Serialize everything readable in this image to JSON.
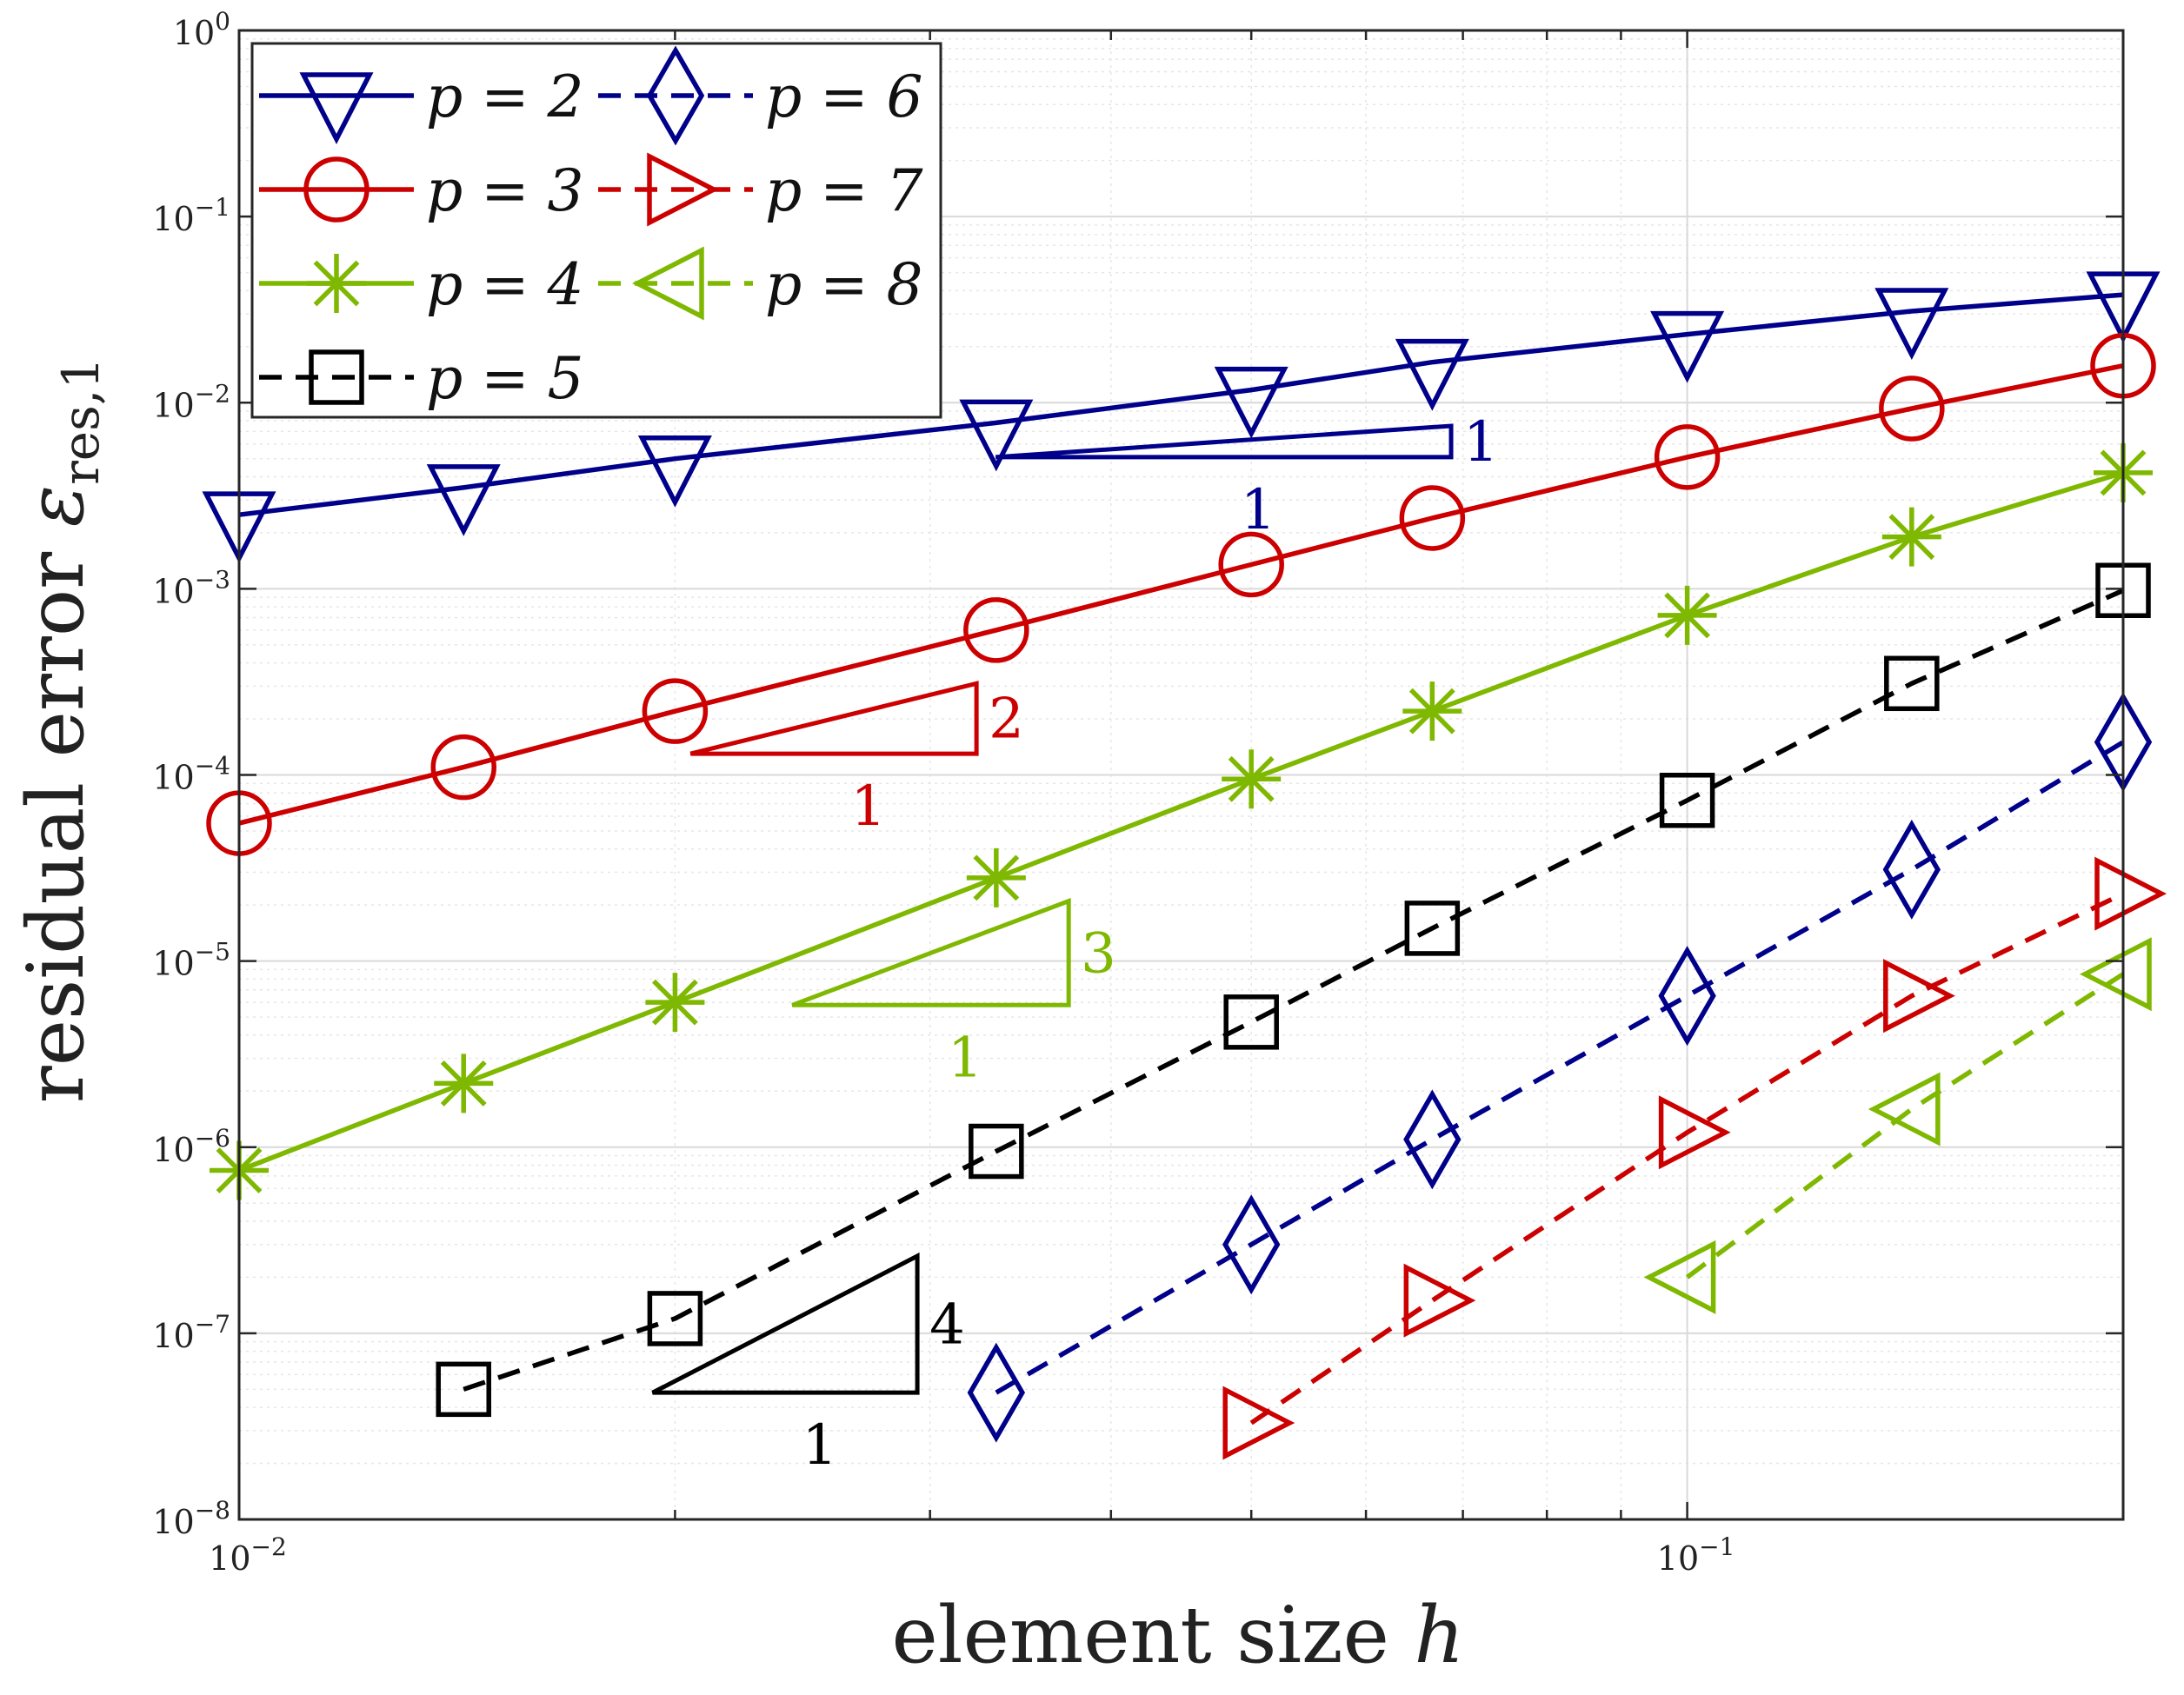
{
  "chart_data": {
    "type": "line",
    "xscale": "log",
    "yscale": "log",
    "xlim": [
      0.01,
      0.2
    ],
    "ylim": [
      1e-08,
      1
    ],
    "xlabel": "element size h",
    "ylabel": "residual error ε_res,1",
    "x_ticks": [
      {
        "value": 0.01,
        "base": "10",
        "exp": "−2"
      },
      {
        "value": 0.1,
        "base": "10",
        "exp": "−1"
      }
    ],
    "y_ticks": [
      {
        "value": 1,
        "base": "10",
        "exp": "0"
      },
      {
        "value": 0.1,
        "base": "10",
        "exp": "−1"
      },
      {
        "value": 0.01,
        "base": "10",
        "exp": "−2"
      },
      {
        "value": 0.001,
        "base": "10",
        "exp": "−3"
      },
      {
        "value": 0.0001,
        "base": "10",
        "exp": "−4"
      },
      {
        "value": 1e-05,
        "base": "10",
        "exp": "−5"
      },
      {
        "value": 1e-06,
        "base": "10",
        "exp": "−6"
      },
      {
        "value": 1e-07,
        "base": "10",
        "exp": "−7"
      },
      {
        "value": 1e-08,
        "base": "10",
        "exp": "−8"
      }
    ],
    "grid": true,
    "legend_position": "top-left",
    "series": [
      {
        "name": "p = 2",
        "color": "#00008b",
        "dashed": false,
        "marker": "triangle-down",
        "x": [
          0.01,
          0.01429,
          0.02,
          0.03333,
          0.05,
          0.06667,
          0.1,
          0.1429,
          0.2
        ],
        "y": [
          0.0025,
          0.0035,
          0.005,
          0.0078,
          0.0117,
          0.0165,
          0.0233,
          0.031,
          0.038
        ]
      },
      {
        "name": "p = 3",
        "color": "#cc0000",
        "dashed": false,
        "marker": "circle",
        "x": [
          0.01,
          0.01429,
          0.02,
          0.03333,
          0.05,
          0.06667,
          0.1,
          0.1429,
          0.2
        ],
        "y": [
          5.5e-05,
          0.00011,
          0.00022,
          0.0006,
          0.00135,
          0.0024,
          0.0051,
          0.0093,
          0.0158
        ]
      },
      {
        "name": "p = 4",
        "color": "#7fb800",
        "dashed": false,
        "marker": "asterisk",
        "x": [
          0.01,
          0.01429,
          0.02,
          0.03333,
          0.05,
          0.06667,
          0.1,
          0.1429,
          0.2
        ],
        "y": [
          7.5e-07,
          2.2e-06,
          6e-06,
          2.8e-05,
          9.5e-05,
          0.00022,
          0.00072,
          0.0019,
          0.0042
        ]
      },
      {
        "name": "p = 5",
        "color": "#000000",
        "dashed": true,
        "marker": "square",
        "x": [
          0.01429,
          0.02,
          0.03333,
          0.05,
          0.06667,
          0.1,
          0.1429,
          0.2
        ],
        "y": [
          5e-08,
          1.2e-07,
          9.5e-07,
          4.7e-06,
          1.5e-05,
          7.3e-05,
          0.00031,
          0.00098
        ]
      },
      {
        "name": "p = 6",
        "color": "#00008b",
        "dashed": true,
        "marker": "diamond",
        "x": [
          0.03333,
          0.05,
          0.06667,
          0.1,
          0.1429,
          0.2
        ],
        "y": [
          4.8e-08,
          3e-07,
          1.1e-06,
          6.5e-06,
          3.1e-05,
          0.00015
        ]
      },
      {
        "name": "p = 7",
        "color": "#cc0000",
        "dashed": true,
        "marker": "triangle-right",
        "x": [
          0.05,
          0.06667,
          0.1,
          0.1429,
          0.2
        ],
        "y": [
          3.3e-08,
          1.5e-07,
          1.2e-06,
          6.5e-06,
          2.3e-05
        ]
      },
      {
        "name": "p = 8",
        "color": "#7fb800",
        "dashed": true,
        "marker": "triangle-left",
        "x": [
          0.1,
          0.1429,
          0.2
        ],
        "y": [
          2e-07,
          1.6e-06,
          8.5e-06
        ]
      }
    ],
    "slope_triangles": [
      {
        "series": "p = 2",
        "color": "#00008b",
        "x0": 0.0333,
        "x1": 0.0687,
        "y0": 0.0051,
        "y1": 0.0075,
        "rise_label": "1",
        "run_label": "1"
      },
      {
        "series": "p = 3",
        "color": "#cc0000",
        "x0": 0.0205,
        "x1": 0.0323,
        "y0": 0.00013,
        "y1": 0.00031,
        "rise_label": "2",
        "run_label": "1"
      },
      {
        "series": "p = 4",
        "color": "#7fb800",
        "x0": 0.0241,
        "x1": 0.0374,
        "y0": 5.8e-06,
        "y1": 2.1e-05,
        "rise_label": "3",
        "run_label": "1"
      },
      {
        "series": "p = 5",
        "color": "#000000",
        "x0": 0.0193,
        "x1": 0.0294,
        "y0": 4.8e-08,
        "y1": 2.6e-07,
        "rise_label": "4",
        "run_label": "1"
      }
    ]
  }
}
